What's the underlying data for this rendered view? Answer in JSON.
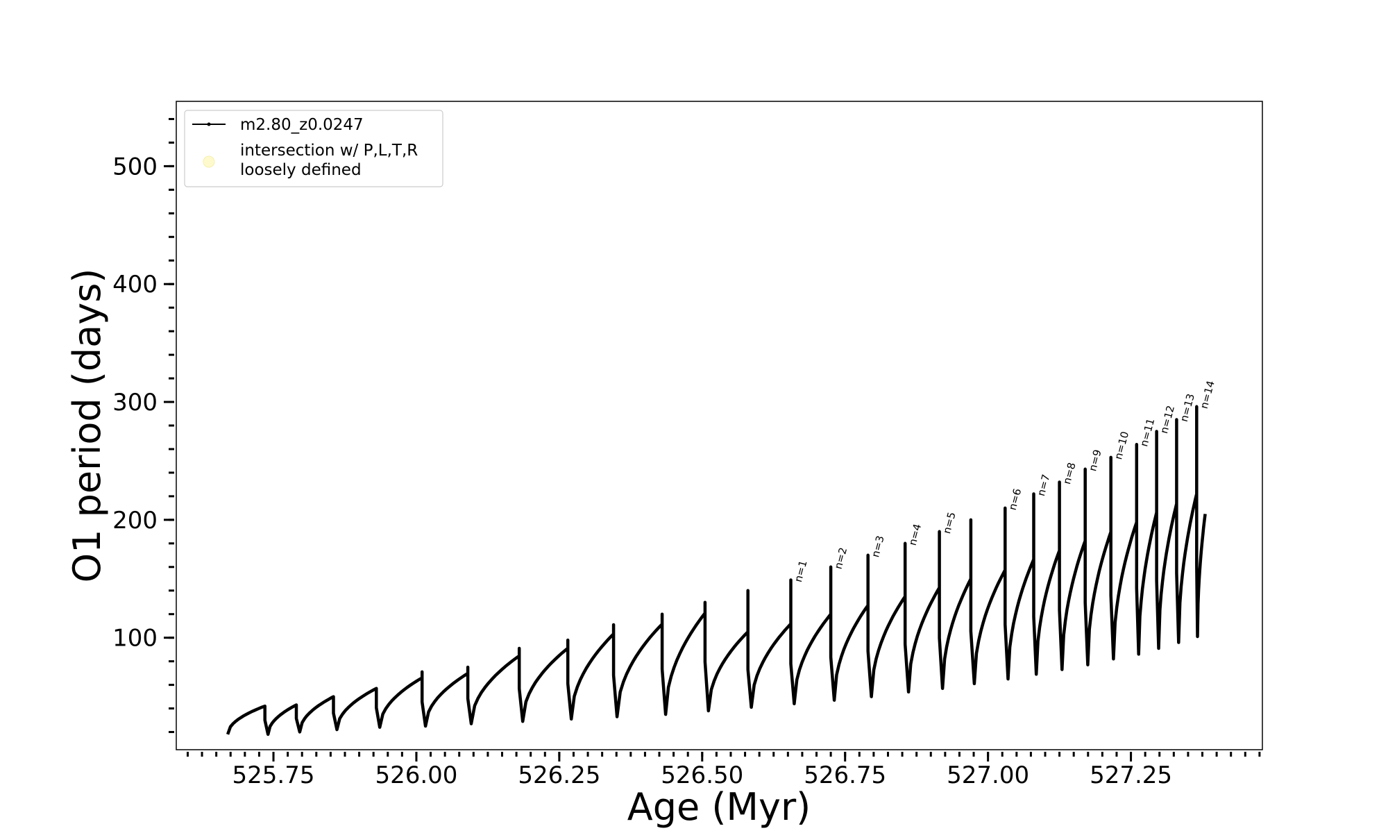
{
  "chart_data": {
    "type": "line",
    "xlabel": "Age (Myr)",
    "ylabel": "O1 period (days)",
    "xlim": [
      525.58,
      527.48
    ],
    "ylim": [
      5,
      555
    ],
    "x_ticks": [
      525.75,
      526.0,
      526.25,
      526.5,
      526.75,
      527.0,
      527.25
    ],
    "x_tick_labels": [
      "525.75",
      "526.00",
      "526.25",
      "526.50",
      "526.75",
      "527.00",
      "527.25"
    ],
    "x_minor_step": 0.025,
    "y_ticks": [
      100,
      200,
      300,
      400,
      500
    ],
    "y_tick_labels": [
      "100",
      "200",
      "300",
      "400",
      "500"
    ],
    "y_minor_step": 20,
    "grid": false,
    "legend": {
      "placement": "top-left",
      "entries": [
        {
          "label": "m2.80_z0.0247",
          "marker": "line-dot",
          "color": "#000000"
        },
        {
          "label": "intersection w/ P,L,T,R",
          "label2": "loosely defined",
          "marker": "circle",
          "color": "#fffacd"
        }
      ]
    },
    "series": [
      {
        "name": "m2.80_z0.0247",
        "color": "#000000",
        "start": {
          "x": 525.67,
          "y": 18
        },
        "end_x": 527.38,
        "pulses": [
          {
            "x": 525.735,
            "top": 42,
            "min": 18
          },
          {
            "x": 525.79,
            "top": 43,
            "min": 20
          },
          {
            "x": 525.855,
            "top": 50,
            "min": 22
          },
          {
            "x": 525.93,
            "top": 57,
            "min": 24
          },
          {
            "x": 526.01,
            "top": 71,
            "min": 25
          },
          {
            "x": 526.09,
            "top": 75,
            "min": 27
          },
          {
            "x": 526.18,
            "top": 91,
            "min": 29
          },
          {
            "x": 526.265,
            "top": 98,
            "min": 31
          },
          {
            "x": 526.345,
            "top": 111,
            "min": 33
          },
          {
            "x": 526.43,
            "top": 120,
            "min": 35
          },
          {
            "x": 526.505,
            "top": 130,
            "min": 38
          },
          {
            "x": 526.58,
            "top": 140,
            "min": 41
          },
          {
            "x": 526.655,
            "top": 149,
            "min": 44
          },
          {
            "x": 526.725,
            "top": 160,
            "min": 47
          },
          {
            "x": 526.79,
            "top": 170,
            "min": 50
          },
          {
            "x": 526.855,
            "top": 180,
            "min": 54
          },
          {
            "x": 526.915,
            "top": 190,
            "min": 57
          },
          {
            "x": 526.97,
            "top": 200,
            "min": 61
          },
          {
            "x": 527.03,
            "top": 210,
            "min": 65
          },
          {
            "x": 527.08,
            "top": 222,
            "min": 69
          },
          {
            "x": 527.125,
            "top": 232,
            "min": 73
          },
          {
            "x": 527.17,
            "top": 243,
            "min": 77
          },
          {
            "x": 527.215,
            "top": 253,
            "min": 82
          },
          {
            "x": 527.26,
            "top": 264,
            "min": 86
          },
          {
            "x": 527.295,
            "top": 275,
            "min": 91
          },
          {
            "x": 527.33,
            "top": 285,
            "min": 96
          },
          {
            "x": 527.365,
            "top": 296,
            "min": 101
          }
        ],
        "final_y": 205
      }
    ],
    "annotations": [
      {
        "text": "n=1",
        "x": 526.655,
        "y": 149
      },
      {
        "text": "n=2",
        "x": 526.725,
        "y": 160
      },
      {
        "text": "n=3",
        "x": 526.79,
        "y": 170
      },
      {
        "text": "n=4",
        "x": 526.855,
        "y": 180
      },
      {
        "text": "n=5",
        "x": 526.915,
        "y": 190
      },
      {
        "text": "n=6",
        "x": 527.03,
        "y": 210
      },
      {
        "text": "n=7",
        "x": 527.08,
        "y": 222
      },
      {
        "text": "n=8",
        "x": 527.125,
        "y": 232
      },
      {
        "text": "n=9",
        "x": 527.17,
        "y": 243
      },
      {
        "text": "n=10",
        "x": 527.215,
        "y": 253
      },
      {
        "text": "n=11",
        "x": 527.26,
        "y": 264
      },
      {
        "text": "n=12",
        "x": 527.295,
        "y": 275
      },
      {
        "text": "n=13",
        "x": 527.33,
        "y": 285
      },
      {
        "text": "n=14",
        "x": 527.365,
        "y": 296
      }
    ]
  }
}
